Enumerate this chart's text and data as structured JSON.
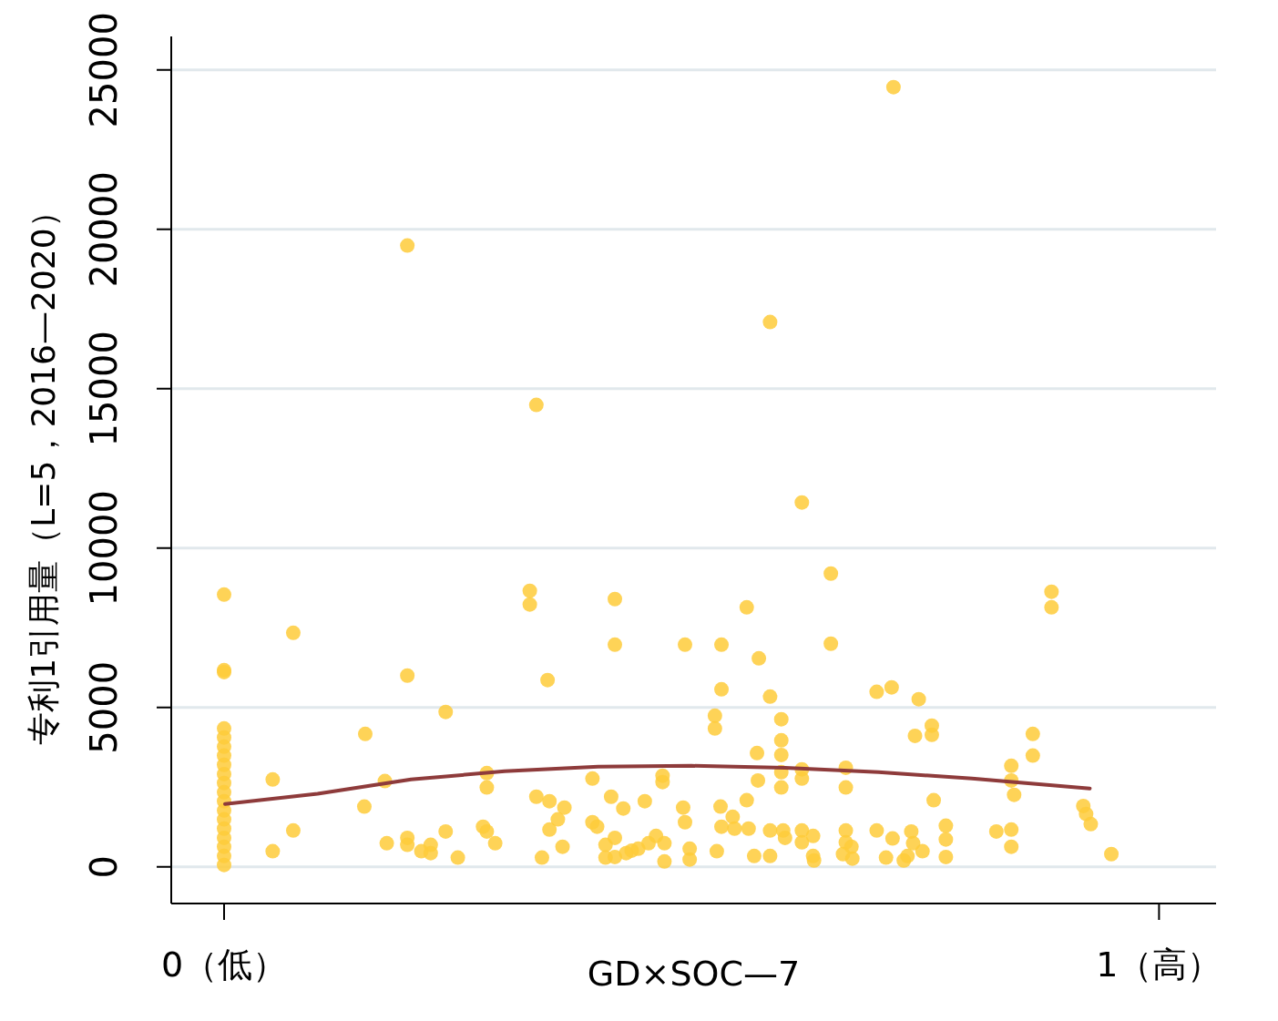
{
  "chart_data": {
    "type": "scatter",
    "xlabel": "GD×SOC—7",
    "ylabel": "专利1引用量（L=5，2016—2020）",
    "xlim": [
      -0.0565,
      1.061
    ],
    "ylim": [
      -1150,
      26050
    ],
    "xticks": [
      {
        "value": 0,
        "label": "0（低）"
      },
      {
        "value": 1,
        "label": "1（高）"
      }
    ],
    "yticks": [
      0,
      5000,
      10000,
      15000,
      20000,
      25000
    ],
    "grid": "y",
    "series": [
      {
        "marker": "circle",
        "color": "#fecb3a",
        "x": [
          0,
          0,
          0,
          0,
          0,
          0,
          0,
          0,
          0,
          0,
          0,
          0,
          0,
          0,
          0,
          0,
          0,
          0,
          0,
          0.052,
          0.052,
          0.074,
          0.074,
          0.151,
          0.15,
          0.172,
          0.174,
          0.196,
          0.196,
          0.196,
          0.196,
          0.211,
          0.221,
          0.221,
          0.237,
          0.237,
          0.25,
          0.277,
          0.281,
          0.281,
          0.281,
          0.29,
          0.334,
          0.327,
          0.327,
          0.346,
          0.334,
          0.348,
          0.348,
          0.34,
          0.357,
          0.362,
          0.364,
          0.394,
          0.394,
          0.399,
          0.418,
          0.418,
          0.414,
          0.427,
          0.418,
          0.408,
          0.408,
          0.418,
          0.43,
          0.436,
          0.443,
          0.45,
          0.454,
          0.462,
          0.469,
          0.469,
          0.471,
          0.471,
          0.491,
          0.493,
          0.493,
          0.498,
          0.498,
          0.525,
          0.525,
          0.527,
          0.532,
          0.532,
          0.531,
          0.532,
          0.544,
          0.546,
          0.559,
          0.559,
          0.561,
          0.572,
          0.57,
          0.571,
          0.567,
          0.584,
          0.584,
          0.584,
          0.584,
          0.596,
          0.596,
          0.596,
          0.596,
          0.596,
          0.598,
          0.6,
          0.618,
          0.618,
          0.618,
          0.618,
          0.618,
          0.63,
          0.63,
          0.631,
          0.649,
          0.649,
          0.665,
          0.665,
          0.665,
          0.665,
          0.662,
          0.671,
          0.672,
          0.698,
          0.698,
          0.714,
          0.716,
          0.715,
          0.708,
          0.727,
          0.731,
          0.735,
          0.737,
          0.743,
          0.739,
          0.747,
          0.757,
          0.757,
          0.759,
          0.772,
          0.772,
          0.772,
          0.826,
          0.842,
          0.842,
          0.845,
          0.842,
          0.842,
          0.865,
          0.865,
          0.885,
          0.885,
          0.919,
          0.922,
          0.927,
          0.949
        ],
        "values": [
          8540,
          6170,
          6110,
          4340,
          4060,
          3770,
          3490,
          3200,
          2910,
          2630,
          2340,
          2060,
          1770,
          1490,
          1200,
          910,
          630,
          340,
          60,
          2740,
          490,
          7340,
          1140,
          4170,
          1890,
          2690,
          740,
          19490,
          6000,
          910,
          690,
          490,
          690,
          430,
          4860,
          1110,
          290,
          1260,
          1110,
          2940,
          2490,
          740,
          14490,
          8660,
          8230,
          5860,
          2200,
          2060,
          1170,
          290,
          1490,
          630,
          1860,
          2770,
          1400,
          1260,
          8400,
          6970,
          2200,
          1830,
          910,
          690,
          290,
          310,
          430,
          510,
          570,
          2060,
          740,
          970,
          2860,
          2660,
          740,
          170,
          1860,
          1400,
          6970,
          570,
          230,
          4740,
          4340,
          490,
          6970,
          5570,
          1890,
          1260,
          1570,
          1200,
          8140,
          2090,
          1200,
          6540,
          3570,
          2710,
          340,
          17090,
          5340,
          1140,
          340,
          4630,
          3970,
          3510,
          2970,
          2490,
          1140,
          910,
          11430,
          3060,
          2770,
          1140,
          770,
          970,
          340,
          200,
          9200,
          7000,
          3110,
          2490,
          1140,
          770,
          400,
          630,
          260,
          5490,
          1140,
          5630,
          24460,
          890,
          290,
          200,
          340,
          1110,
          740,
          5260,
          4110,
          490,
          4140,
          4430,
          2090,
          1290,
          860,
          310,
          1110,
          3170,
          2710,
          2260,
          1170,
          630,
          4170,
          3490,
          8630,
          8140,
          1910,
          1660,
          1340,
          400
        ]
      },
      {
        "type": "line",
        "color": "#8e3b3b",
        "x": [
          0.001,
          0.1,
          0.2,
          0.3,
          0.4,
          0.5,
          0.6,
          0.7,
          0.8,
          0.926
        ],
        "values": [
          1970,
          2290,
          2740,
          3000,
          3140,
          3170,
          3110,
          2970,
          2770,
          2460
        ]
      }
    ]
  }
}
